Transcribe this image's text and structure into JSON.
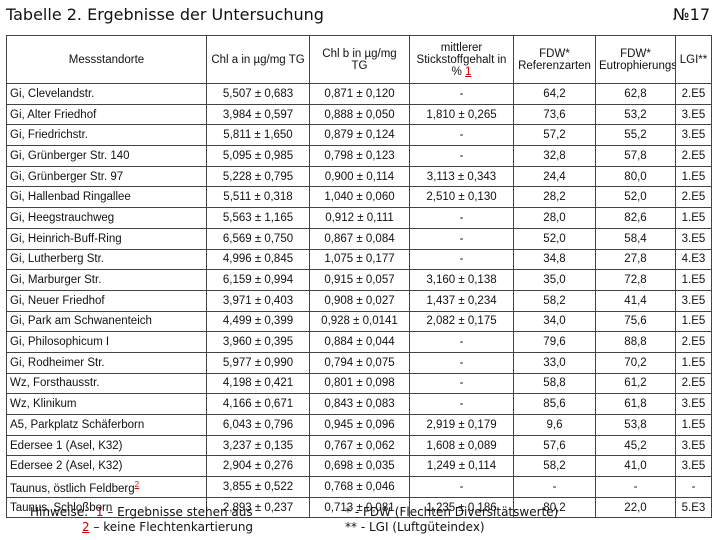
{
  "title": "Tabelle 2. Ergebnisse der Untersuchung",
  "page_number": "№17",
  "table": {
    "headers": [
      "Messstandorte",
      "Chl a in µg/mg TG",
      "Chl b in µg/mg TG",
      "mittlerer Stickstoffgehalt in % ",
      "FDW* Referenzarten",
      "FDW* Eutrophierungszeiger",
      "LGI**"
    ],
    "header_sup": "1",
    "rows": [
      [
        "Gi, Clevelandstr.",
        "5,507 ± 0,683",
        "0,871 ± 0,120",
        "-",
        "64,2",
        "62,8",
        "2.E5"
      ],
      [
        "Gi, Alter Friedhof",
        "3,984 ± 0,597",
        "0,888 ± 0,050",
        "1,810 ± 0,265",
        "73,6",
        "53,2",
        "3.E5"
      ],
      [
        "Gi, Friedrichstr.",
        "5,811 ± 1,650",
        "0,879 ± 0,124",
        "-",
        "57,2",
        "55,2",
        "3.E5"
      ],
      [
        "Gi, Grünberger Str. 140",
        "5,095 ± 0,985",
        "0,798 ± 0,123",
        "-",
        "32,8",
        "57,8",
        "2.E5"
      ],
      [
        "Gi, Grünberger Str. 97",
        "5,228 ± 0,795",
        "0,900 ± 0,114",
        "3,113 ± 0,343",
        "24,4",
        "80,0",
        "1.E5"
      ],
      [
        "Gi, Hallenbad Ringallee",
        "5,511 ± 0,318",
        "1,040 ± 0,060",
        "2,510 ± 0,130",
        "28,2",
        "52,0",
        "2.E5"
      ],
      [
        "Gi, Heegstrauchweg",
        "5,563 ± 1,165",
        "0,912 ± 0,111",
        "-",
        "28,0",
        "82,6",
        "1.E5"
      ],
      [
        "Gi, Heinrich-Buff-Ring",
        "6,569 ± 0,750",
        "0,867 ± 0,084",
        "-",
        "52,0",
        "58,4",
        "3.E5"
      ],
      [
        "Gi, Lutherberg Str.",
        "4,996 ± 0,845",
        "1,075 ± 0,177",
        "-",
        "34,8",
        "27,8",
        "4.E3"
      ],
      [
        "Gi, Marburger Str.",
        "6,159 ± 0,994",
        "0,915 ± 0,057",
        "3,160 ± 0,138",
        "35,0",
        "72,8",
        "1.E5"
      ],
      [
        "Gi, Neuer Friedhof",
        "3,971 ± 0,403",
        "0,908 ± 0,027",
        "1,437 ± 0,234",
        "58,2",
        "41,4",
        "3.E5"
      ],
      [
        "Gi, Park am Schwanenteich",
        "4,499 ± 0,399",
        "0,928 ± 0,0141",
        "2,082 ± 0,175",
        "34,0",
        "75,6",
        "1.E5"
      ],
      [
        "Gi, Philosophicum I",
        "3,960 ± 0,395",
        "0,884 ± 0,044",
        "-",
        "79,6",
        "88,8",
        "2.E5"
      ],
      [
        "Gi, Rodheimer Str.",
        "5,977 ± 0,990",
        "0,794 ± 0,075",
        "-",
        "33,0",
        "70,2",
        "1.E5"
      ],
      [
        "Wz, Forsthausstr.",
        "4,198 ± 0,421",
        "0,801 ± 0,098",
        "-",
        "58,8",
        "61,2",
        "2.E5"
      ],
      [
        "Wz, Klinikum",
        "4,166 ± 0,671",
        "0,843 ± 0,083",
        "-",
        "85,6",
        "61,8",
        "3.E5"
      ],
      [
        "A5, Parkplatz Schäferborn",
        "6,043 ± 0,796",
        "0,945 ± 0,096",
        "2,919 ± 0,179",
        "9,6",
        "53,8",
        "1.E5"
      ],
      [
        "Edersee 1 (Asel, K32)",
        "3,237 ± 0,135",
        "0,767 ± 0,062",
        "1,608 ± 0,089",
        "57,6",
        "45,2",
        "3.E5"
      ],
      [
        "Edersee 2 (Asel, K32)",
        "2,904 ± 0,276",
        "0,698 ± 0,035",
        "1,249 ± 0,114",
        "58,2",
        "41,0",
        "3.E5"
      ],
      [
        "Taunus, östlich Feldberg",
        "3,855 ± 0,522",
        "0,768 ± 0,046",
        "-",
        "-",
        "-",
        "-"
      ],
      [
        "Taunus, Schloßborn",
        "2,893 ± 0,237",
        "0,713 ± 0,081",
        "1,235 ± 0,186",
        "80,2",
        "22,0",
        "5.E3"
      ]
    ],
    "row_sup": {
      "19": "2"
    }
  },
  "notes": {
    "label": "Hinweise:",
    "n1_num": "1",
    "n1_text": " – Ergebnisse stehen aus",
    "n2_num": "2",
    "n2_text": " – keine Flechtenkartierung",
    "fdw": "* - FDW (Flechten Diversitätswerte)",
    "lgi": "** - LGI (Luftgüteindex)"
  }
}
